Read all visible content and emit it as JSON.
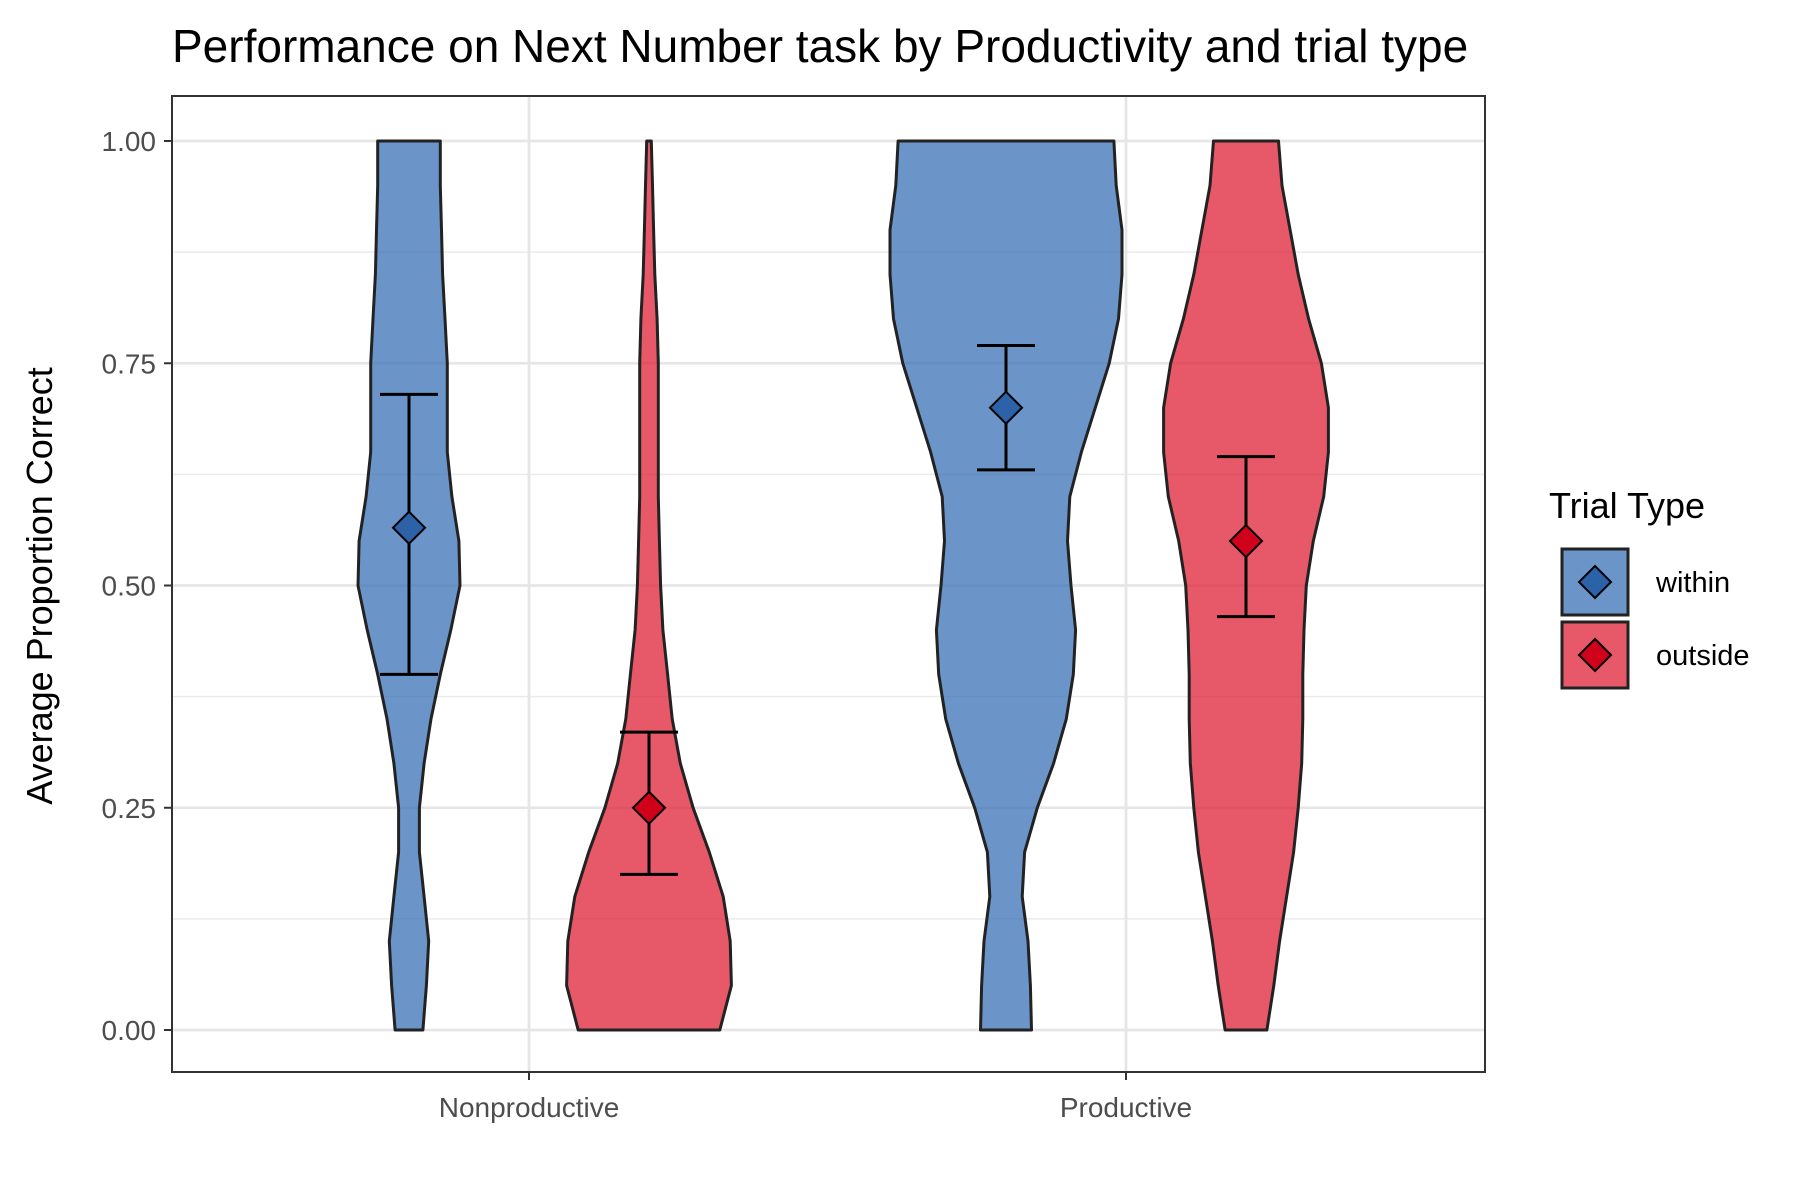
{
  "chart_data": {
    "type": "violin",
    "title": "Performance on Next Number task by Productivity and trial type",
    "xlabel": "",
    "ylabel": "Average Proportion Correct",
    "ylim": [
      -0.1,
      1.05
    ],
    "yticks": [
      "0.00",
      "0.25",
      "0.50",
      "0.75",
      "1.00"
    ],
    "categories": [
      "Nonproductive",
      "Productive"
    ],
    "grid": true,
    "legend": {
      "title": "Trial Type",
      "placement": "right"
    },
    "series": [
      {
        "name": "within",
        "color": "#3a72b5",
        "marker_color": "#2b62a8",
        "summary": [
          {
            "category": "Nonproductive",
            "mean": 0.565,
            "ci_low": 0.4,
            "ci_high": 0.715
          },
          {
            "category": "Productive",
            "mean": 0.7,
            "ci_low": 0.63,
            "ci_high": 0.77
          }
        ],
        "density": [
          {
            "category": "Nonproductive",
            "y": [
              0.0,
              0.05,
              0.1,
              0.15,
              0.2,
              0.25,
              0.3,
              0.35,
              0.4,
              0.45,
              0.5,
              0.55,
              0.6,
              0.65,
              0.7,
              0.75,
              0.8,
              0.85,
              0.9,
              0.95,
              1.0
            ],
            "w": [
              0.12,
              0.15,
              0.17,
              0.13,
              0.09,
              0.09,
              0.13,
              0.19,
              0.27,
              0.36,
              0.44,
              0.43,
              0.37,
              0.33,
              0.33,
              0.33,
              0.31,
              0.29,
              0.28,
              0.27,
              0.27
            ]
          },
          {
            "category": "Productive",
            "y": [
              0.0,
              0.05,
              0.1,
              0.15,
              0.2,
              0.25,
              0.3,
              0.35,
              0.4,
              0.45,
              0.5,
              0.55,
              0.6,
              0.65,
              0.7,
              0.75,
              0.8,
              0.85,
              0.9,
              0.95,
              1.0
            ],
            "w": [
              0.22,
              0.21,
              0.19,
              0.14,
              0.16,
              0.27,
              0.41,
              0.52,
              0.58,
              0.6,
              0.56,
              0.53,
              0.55,
              0.65,
              0.77,
              0.89,
              0.97,
              1.0,
              1.0,
              0.95,
              0.93
            ]
          }
        ]
      },
      {
        "name": "outside",
        "color": "#df2135",
        "marker_color": "#d0021b",
        "summary": [
          {
            "category": "Nonproductive",
            "mean": 0.25,
            "ci_low": 0.175,
            "ci_high": 0.335
          },
          {
            "category": "Productive",
            "mean": 0.55,
            "ci_low": 0.465,
            "ci_high": 0.645
          }
        ],
        "density": [
          {
            "category": "Nonproductive",
            "y": [
              0.0,
              0.05,
              0.1,
              0.15,
              0.2,
              0.25,
              0.3,
              0.35,
              0.4,
              0.45,
              0.5,
              0.55,
              0.6,
              0.65,
              0.7,
              0.75,
              0.8,
              0.85,
              0.9,
              0.95,
              1.0
            ],
            "w": [
              0.61,
              0.71,
              0.7,
              0.64,
              0.52,
              0.38,
              0.27,
              0.2,
              0.16,
              0.12,
              0.1,
              0.09,
              0.08,
              0.08,
              0.08,
              0.08,
              0.07,
              0.05,
              0.04,
              0.03,
              0.02
            ]
          },
          {
            "category": "Productive",
            "y": [
              0.0,
              0.05,
              0.1,
              0.15,
              0.2,
              0.25,
              0.3,
              0.35,
              0.4,
              0.45,
              0.5,
              0.55,
              0.6,
              0.65,
              0.7,
              0.75,
              0.8,
              0.85,
              0.9,
              0.95,
              1.0
            ],
            "w": [
              0.18,
              0.24,
              0.29,
              0.35,
              0.41,
              0.45,
              0.48,
              0.49,
              0.49,
              0.5,
              0.52,
              0.58,
              0.67,
              0.71,
              0.71,
              0.65,
              0.54,
              0.45,
              0.38,
              0.31,
              0.28
            ]
          }
        ]
      }
    ]
  }
}
